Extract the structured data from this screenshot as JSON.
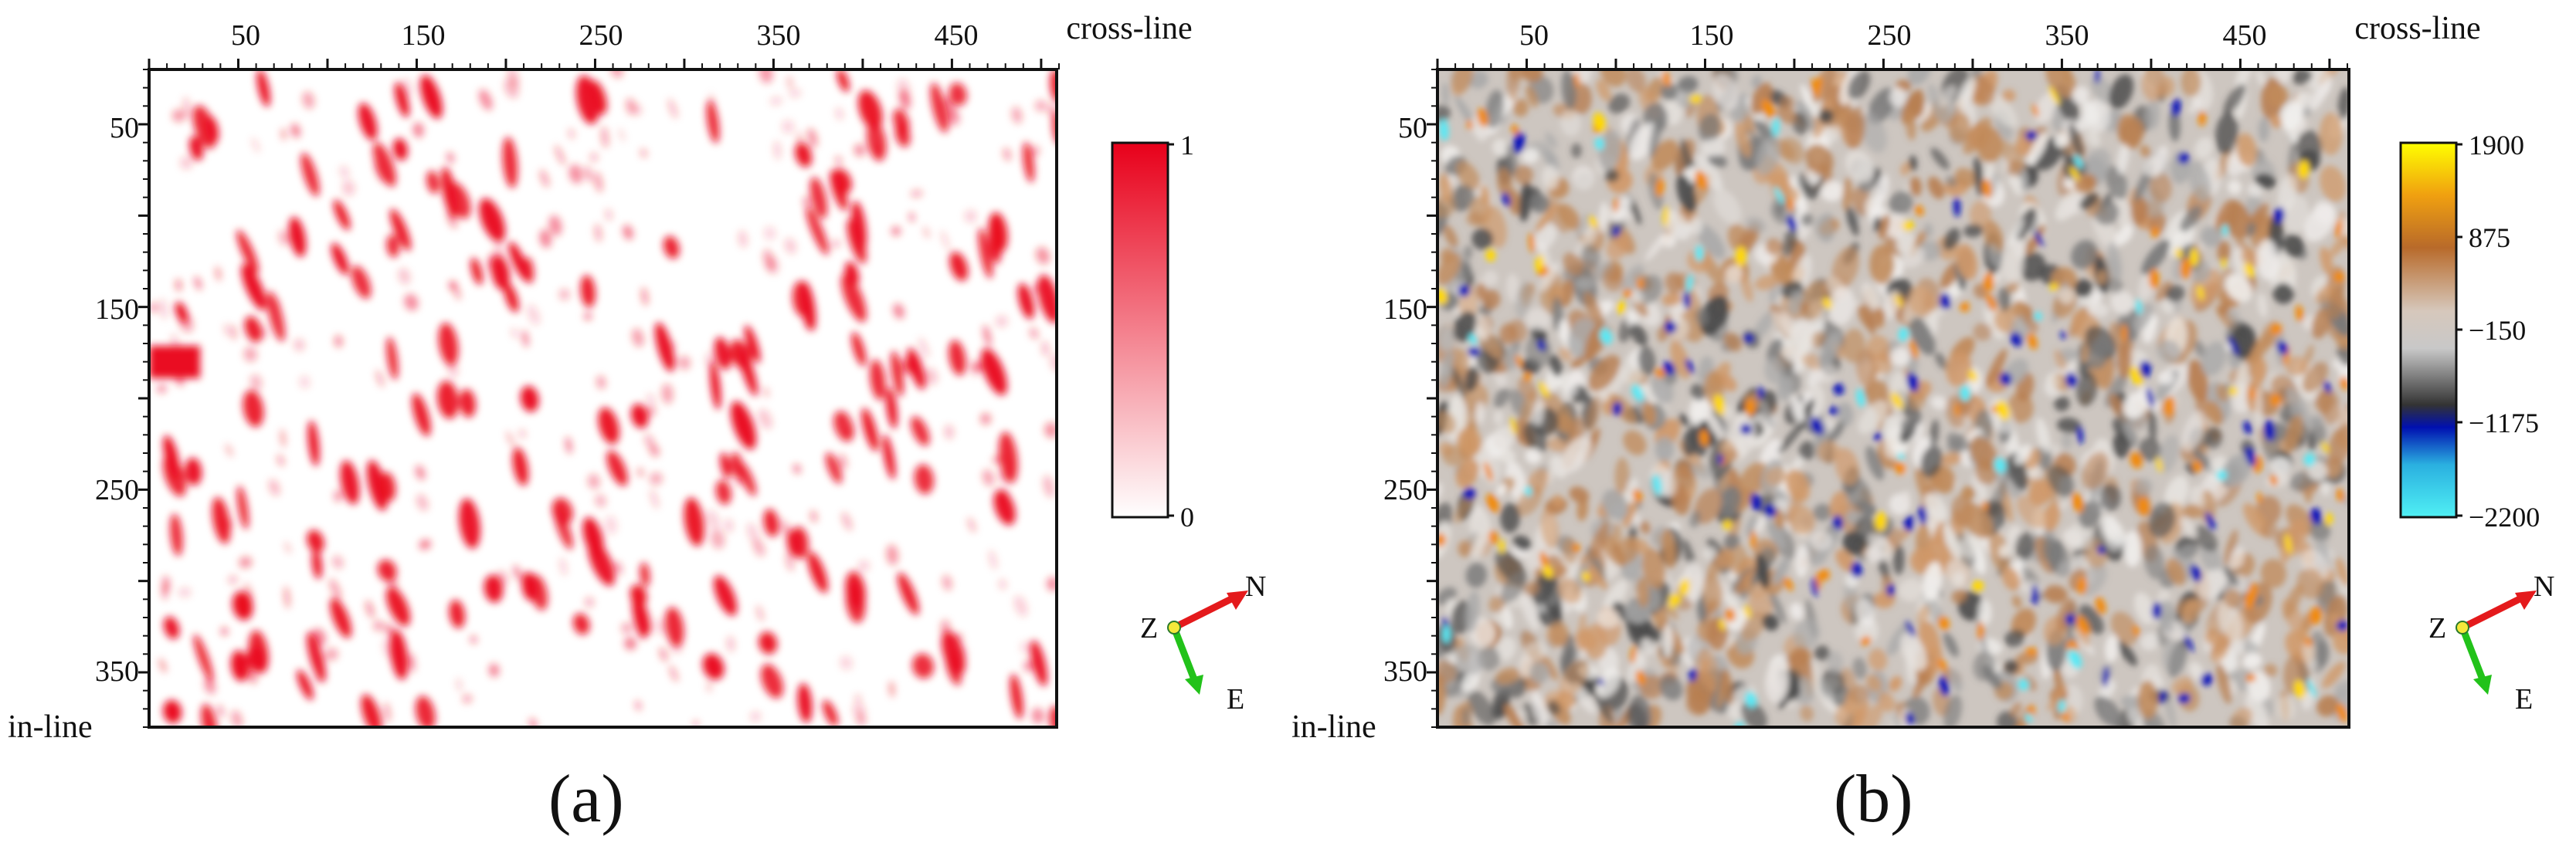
{
  "panels": [
    {
      "id": "a",
      "caption": "(a)",
      "xlabel": "cross-line",
      "ylabel": "in-line",
      "x_ticks": [
        "50",
        "150",
        "250",
        "350",
        "450"
      ],
      "y_ticks": [
        "50",
        "150",
        "250",
        "350"
      ],
      "colorbar": {
        "labels": [
          "1",
          "0"
        ],
        "colors": [
          "#e8001a",
          "#ffffff"
        ]
      },
      "compass": {
        "z": "Z",
        "n": "N",
        "e": "E"
      }
    },
    {
      "id": "b",
      "caption": "(b)",
      "xlabel": "cross-line",
      "ylabel": "in-line",
      "x_ticks": [
        "50",
        "150",
        "250",
        "350",
        "450"
      ],
      "y_ticks": [
        "50",
        "150",
        "250",
        "350"
      ],
      "colorbar": {
        "labels": [
          "1900",
          "875",
          "−150",
          "−1175",
          "−2200"
        ],
        "colors": [
          "#ffff00",
          "#e08a1a",
          "#b8804f",
          "#d8d8d8",
          "#3a3a3a",
          "#0010b0",
          "#44e8f0"
        ]
      },
      "compass": {
        "z": "Z",
        "n": "N",
        "e": "E"
      }
    }
  ],
  "axis_range": {
    "cross_line": [
      0,
      510
    ],
    "in_line": [
      20,
      370
    ]
  }
}
